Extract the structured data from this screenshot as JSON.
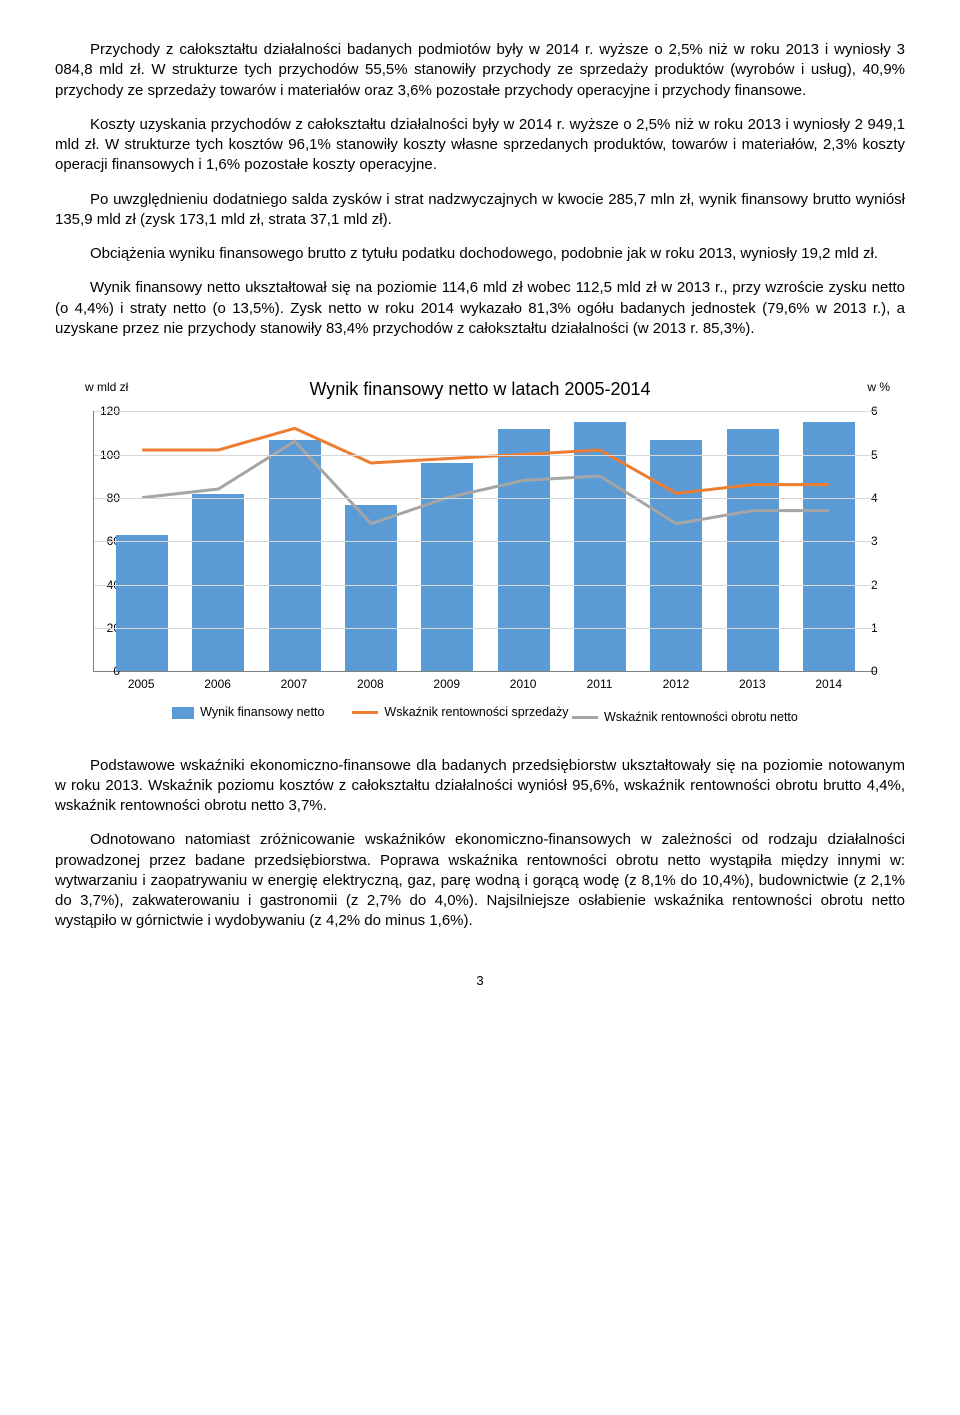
{
  "paragraphs": {
    "p1": "Przychody z całokształtu działalności badanych podmiotów były w 2014 r. wyższe o 2,5% niż w roku 2013 i wyniosły 3 084,8 mld zł. W strukturze tych przychodów 55,5% stanowiły przychody ze sprzedaży produktów (wyrobów i usług), 40,9% przychody ze sprzedaży towarów i materiałów oraz 3,6% pozostałe przychody operacyjne i przychody finansowe.",
    "p2": "Koszty uzyskania przychodów z całokształtu działalności były w 2014 r. wyższe o 2,5% niż w roku 2013 i wyniosły 2 949,1 mld zł. W strukturze tych kosztów 96,1% stanowiły koszty własne sprzedanych produktów, towarów i materiałów, 2,3% koszty operacji finansowych i 1,6% pozostałe koszty operacyjne.",
    "p3": "Po uwzględnieniu dodatniego salda zysków i strat nadzwyczajnych w kwocie 285,7 mln zł, wynik finansowy brutto wyniósł 135,9 mld zł (zysk 173,1 mld zł, strata 37,1 mld zł).",
    "p4": "Obciążenia wyniku finansowego brutto z tytułu podatku dochodowego, podobnie jak w roku 2013, wyniosły 19,2 mld zł.",
    "p5": "Wynik finansowy netto ukształtował się na poziomie 114,6 mld zł wobec 112,5 mld zł w 2013 r., przy wzroście zysku netto (o 4,4%) i straty netto (o 13,5%). Zysk netto w roku 2014 wykazało 81,3% ogółu badanych jednostek (79,6% w 2013 r.), a uzyskane przez nie przychody stanowiły 83,4% przychodów z całokształtu działalności (w 2013 r. 85,3%).",
    "p6": "Podstawowe wskaźniki ekonomiczno-finansowe dla badanych przedsiębiorstw ukształtowały się na poziomie notowanym w roku 2013. Wskaźnik poziomu kosztów z całokształtu działalności wyniósł 95,6%, wskaźnik rentowności obrotu brutto 4,4%, wskaźnik rentowności obrotu netto 3,7%.",
    "p7": "Odnotowano natomiast zróżnicowanie wskaźników ekonomiczno-finansowych w zależności od rodzaju działalności prowadzonej przez badane przedsiębiorstwa. Poprawa wskaźnika rentowności obrotu netto wystąpiła między innymi w: wytwarzaniu i zaopatrywaniu w energię elektryczną, gaz, parę wodną i gorącą wodę (z 8,1% do 10,4%), budownictwie (z 2,1% do 3,7%), zakwaterowaniu i gastronomii (z 2,7% do 4,0%). Najsilniejsze osłabienie wskaźnika rentowności obrotu netto wystąpiło w górnictwie i wydobywaniu (z 4,2% do minus 1,6%)."
  },
  "chart": {
    "title": "Wynik finansowy netto w latach 2005-2014",
    "left_unit": "w mld zł",
    "right_unit": "w %",
    "categories": [
      "2005",
      "2006",
      "2007",
      "2008",
      "2009",
      "2010",
      "2011",
      "2012",
      "2013",
      "2014"
    ],
    "bar_values": [
      63,
      82,
      107,
      77,
      96,
      112,
      115,
      107,
      112,
      115
    ],
    "line_sales": [
      5.1,
      5.1,
      5.6,
      4.8,
      4.9,
      5.0,
      5.1,
      4.1,
      4.3,
      4.3
    ],
    "line_net": [
      4.0,
      4.2,
      5.3,
      3.4,
      4.0,
      4.4,
      4.5,
      3.4,
      3.7,
      3.7
    ],
    "left_max": 120,
    "left_step": 20,
    "left_ticks": [
      0,
      20,
      40,
      60,
      80,
      100,
      120
    ],
    "right_max": 6,
    "right_step": 1,
    "right_ticks": [
      0,
      1,
      2,
      3,
      4,
      5,
      6
    ],
    "bar_color": "#5b9bd5",
    "line_sales_color": "#ed7d31",
    "line_net_color": "#a5a5a5",
    "grid_color": "#d9d9d9",
    "legend_bar": "Wynik finansowy netto",
    "legend_sales": "Wskaźnik rentowności sprzedaży",
    "legend_net": "Wskaźnik rentowności obrotu netto"
  },
  "page_number": "3"
}
